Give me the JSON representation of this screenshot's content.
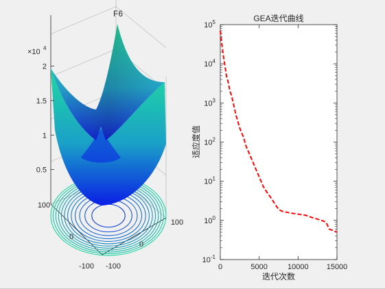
{
  "colors": {
    "figure_bg": "#f0f0f0",
    "axes_bg": "#ffffff",
    "axis": "#262626",
    "surface_top": "#1fd9a0",
    "surface_mid": "#1aa0c8",
    "surface_bottom": "#0a1ee6",
    "contour": "#1560c8",
    "curve": "#ff0000"
  },
  "chart_data": [
    {
      "type": "surface3d",
      "title": "F6",
      "function": "sum of squares",
      "x_range": [
        -100,
        100
      ],
      "y_range": [
        -100,
        100
      ],
      "x_ticks": [
        "-100",
        "0",
        "100"
      ],
      "y_ticks": [
        "-100",
        "0",
        "100"
      ],
      "z_range": [
        0,
        20000
      ],
      "z_ticks": [
        "0.5",
        "1",
        "1.5",
        "2"
      ],
      "z_exponent_label": "×10",
      "z_exponent": "4",
      "contours": 12,
      "colormap": "winter"
    },
    {
      "type": "line",
      "title": "GEA迭代曲线",
      "xlabel": "迭代次数",
      "ylabel": "适应度值",
      "xlim": [
        0,
        15000
      ],
      "ylim": [
        0.1,
        100000
      ],
      "yscale": "log",
      "x_ticks": [
        "0",
        "5000",
        "10000",
        "15000"
      ],
      "y_ticks": [
        {
          "base": "10",
          "exp": "5"
        },
        {
          "base": "10",
          "exp": "4"
        },
        {
          "base": "10",
          "exp": "3"
        },
        {
          "base": "10",
          "exp": "2"
        },
        {
          "base": "10",
          "exp": "1"
        },
        {
          "base": "10",
          "exp": "0"
        },
        {
          "base": "10",
          "exp": "-1"
        }
      ],
      "series": [
        {
          "line_style": "dashed",
          "color": "#ff0000",
          "x": [
            0,
            150,
            400,
            800,
            1000,
            1200,
            1500,
            2000,
            2500,
            3000,
            3300,
            4000,
            4500,
            5000,
            5500,
            6000,
            6500,
            7000,
            7500,
            8000,
            9000,
            10000,
            11000,
            12000,
            12500,
            13000,
            13300,
            13600,
            14000,
            14500,
            15000
          ],
          "y": [
            70000,
            38000,
            16000,
            4800,
            3500,
            2200,
            1400,
            500,
            230,
            130,
            80,
            38,
            22,
            13,
            7.5,
            5.2,
            3.8,
            2.7,
            1.9,
            1.7,
            1.55,
            1.45,
            1.35,
            1.15,
            1.08,
            1.0,
            0.95,
            0.9,
            0.6,
            0.55,
            0.5
          ]
        }
      ]
    }
  ]
}
